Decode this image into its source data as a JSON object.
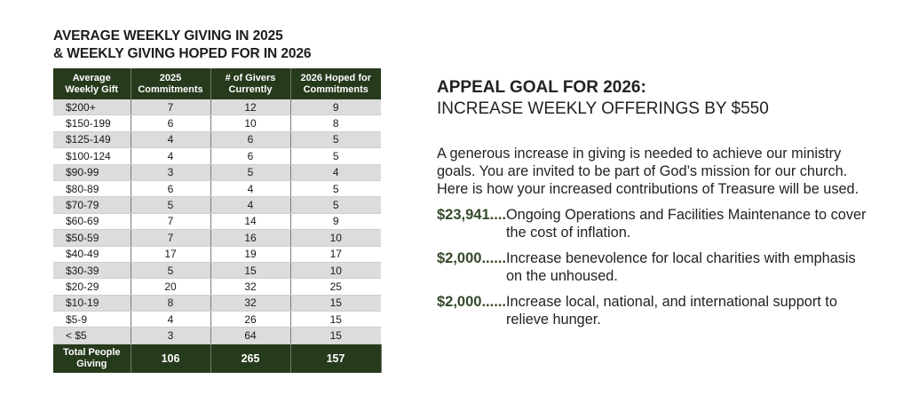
{
  "table_title_line1": "AVERAGE WEEKLY GIVING IN 2025",
  "table_title_line2": "& WEEKLY GIVING HOPED FOR IN 2026",
  "headers": {
    "h1_line1": "Average",
    "h1_line2": "Weekly Gift",
    "h2_line1": "2025",
    "h2_line2": "Commitments",
    "h3_line1": "# of Givers",
    "h3_line2": "Currently",
    "h4_line1": "2026 Hoped for",
    "h4_line2": "Commitments"
  },
  "rows": [
    {
      "range": "$200+",
      "c2025": "7",
      "givers": "12",
      "hoped": "9"
    },
    {
      "range": "$150-199",
      "c2025": "6",
      "givers": "10",
      "hoped": "8"
    },
    {
      "range": "$125-149",
      "c2025": "4",
      "givers": "6",
      "hoped": "5"
    },
    {
      "range": "$100-124",
      "c2025": "4",
      "givers": "6",
      "hoped": "5"
    },
    {
      "range": "$90-99",
      "c2025": "3",
      "givers": "5",
      "hoped": "4"
    },
    {
      "range": "$80-89",
      "c2025": "6",
      "givers": "4",
      "hoped": "5"
    },
    {
      "range": "$70-79",
      "c2025": "5",
      "givers": "4",
      "hoped": "5"
    },
    {
      "range": "$60-69",
      "c2025": "7",
      "givers": "14",
      "hoped": "9"
    },
    {
      "range": "$50-59",
      "c2025": "7",
      "givers": "16",
      "hoped": "10"
    },
    {
      "range": "$40-49",
      "c2025": "17",
      "givers": "19",
      "hoped": "17"
    },
    {
      "range": "$30-39",
      "c2025": "5",
      "givers": "15",
      "hoped": "10"
    },
    {
      "range": "$20-29",
      "c2025": "20",
      "givers": "32",
      "hoped": "25"
    },
    {
      "range": "$10-19",
      "c2025": "8",
      "givers": "32",
      "hoped": "15"
    },
    {
      "range": "$5-9",
      "c2025": "4",
      "givers": "26",
      "hoped": "15"
    },
    {
      "range": "< $5",
      "c2025": "3",
      "givers": "64",
      "hoped": "15"
    }
  ],
  "total": {
    "label_line1": "Total People",
    "label_line2": "Giving",
    "c2025": "106",
    "givers": "265",
    "hoped": "157"
  },
  "goal_title": "APPEAL GOAL FOR 2026:",
  "goal_subtitle": "INCREASE WEEKLY OFFERINGS BY $550",
  "intro_text": "A generous increase in giving is needed to achieve our ministry goals.  You are invited to be part of God’s mission for our church. Here is how your increased contributions of Treasure will be used.",
  "items": [
    {
      "amount": "$23,941....",
      "text": "Ongoing Operations and Facilities Maintenance to cover the cost of inflation."
    },
    {
      "amount": "$2,000......",
      "text": "Increase benevolence for local charities with emphasis on the unhoused."
    },
    {
      "amount": "$2,000......",
      "text": "Increase local, national, and international support to relieve hunger."
    }
  ],
  "colors": {
    "header_green": "#263a1c",
    "amount_green": "#34492a",
    "stripe_gray": "#dcdcdc"
  }
}
